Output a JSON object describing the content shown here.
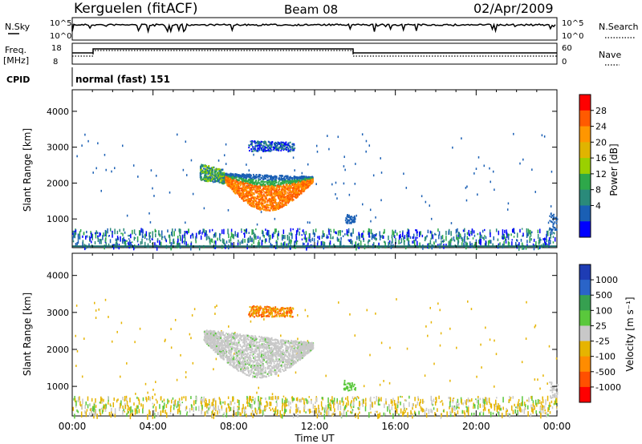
{
  "header": {
    "station": "Kerguelen (fitACF)",
    "beam": "Beam 08",
    "date": "02/Apr/2009"
  },
  "status_panels": {
    "nsky": {
      "label": "N.Sky",
      "top_tick": "10^5",
      "bottom_tick": "10^0"
    },
    "nsearch": {
      "label": "N.Search",
      "top_tick": "10^5",
      "bottom_tick": "10^0"
    },
    "freq": {
      "label": "Freq.",
      "unit": "[MHz]",
      "top_tick": "18",
      "bottom_tick": "8"
    },
    "nave": {
      "label": "Nave",
      "top_tick": "60",
      "bottom_tick": "0"
    },
    "cpid": {
      "label": "CPID",
      "value": "normal (fast) 151"
    }
  },
  "chart_data": [
    {
      "type": "heatmap",
      "name": "power-panel",
      "ylabel": "Slant Range [km]",
      "yticks": [
        1000,
        2000,
        3000,
        4000
      ],
      "ylim": [
        200,
        4600
      ],
      "xticks": [
        "00:00",
        "04:00",
        "08:00",
        "12:00",
        "16:00",
        "20:00",
        "00:00"
      ],
      "xlim": [
        0,
        24
      ],
      "colorbar": {
        "label": "Power [dB]",
        "ticks": [
          "28",
          "24",
          "20",
          "16",
          "12",
          "8",
          "4"
        ],
        "colors": [
          "#ff0000",
          "#ff5a00",
          "#ff9600",
          "#e0b400",
          "#9ad000",
          "#2ea84a",
          "#2a8a7a",
          "#1a5fb4",
          "#0000ff"
        ]
      }
    },
    {
      "type": "heatmap",
      "name": "velocity-panel",
      "ylabel": "Slant Range [km]",
      "yticks": [
        1000,
        2000,
        3000,
        4000
      ],
      "ylim": [
        200,
        4600
      ],
      "xticks": [
        "00:00",
        "04:00",
        "08:00",
        "12:00",
        "16:00",
        "20:00",
        "00:00"
      ],
      "xlim": [
        0,
        24
      ],
      "xlabel": "Time UT",
      "colorbar": {
        "label": "Velocity [m s⁻¹]",
        "ticks": [
          "1000",
          "500",
          "100",
          "25",
          "-25",
          "-100",
          "-500",
          "-1000"
        ],
        "colors": [
          "#1e3cb4",
          "#2a64c8",
          "#36a050",
          "#5ac83c",
          "#c8c8c8",
          "#e6b400",
          "#ff8c00",
          "#ff5000",
          "#ff0000"
        ]
      }
    }
  ]
}
